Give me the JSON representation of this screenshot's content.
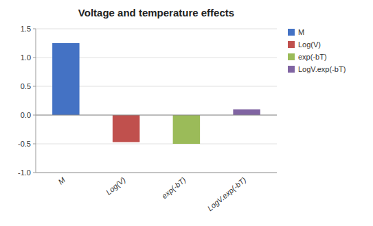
{
  "chart_data": {
    "type": "bar",
    "title": "Voltage and temperature effects",
    "categories": [
      "M",
      "Log(V)",
      "exp(-bT)",
      "LogV.exp(-bT)"
    ],
    "values": [
      1.25,
      -0.47,
      -0.5,
      0.1
    ],
    "colors": [
      "#4472C4",
      "#C0504D",
      "#9BBB59",
      "#8064A2"
    ],
    "ylim": [
      -1.0,
      1.5
    ],
    "yticks": [
      {
        "value": -1.0,
        "label": "-1.0"
      },
      -0.5,
      {
        "value": 0.0,
        "label": "0.0"
      },
      0.5,
      {
        "value": 1.0,
        "label": "1.0"
      },
      1.5
    ],
    "grid": true,
    "legend": "upper right"
  }
}
